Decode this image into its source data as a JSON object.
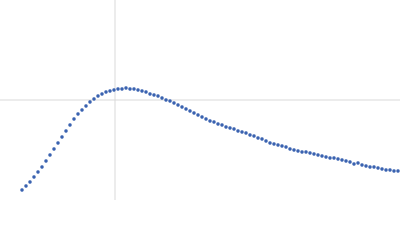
{
  "chart_data": {
    "type": "scatter",
    "color": "#3a62b0",
    "xlim": [
      0,
      400
    ],
    "ylim": [
      0,
      200
    ],
    "xticks": [
      115
    ],
    "yticks": [
      100
    ],
    "grid": true,
    "x": [
      22,
      26,
      30,
      34,
      38,
      42,
      46,
      50,
      54,
      58,
      62,
      66,
      70,
      74,
      78,
      82,
      86,
      90,
      94,
      98,
      102,
      106,
      110,
      114,
      118,
      122,
      126,
      130,
      134,
      138,
      142,
      146,
      150,
      154,
      158,
      162,
      166,
      170,
      174,
      178,
      182,
      186,
      190,
      194,
      198,
      202,
      206,
      210,
      214,
      218,
      222,
      226,
      230,
      234,
      238,
      242,
      246,
      250,
      254,
      258,
      262,
      266,
      270,
      274,
      278,
      282,
      286,
      290,
      294,
      298,
      302,
      306,
      310,
      314,
      318,
      322,
      326,
      330,
      334,
      338,
      342,
      346,
      350,
      354,
      358,
      362,
      366,
      370,
      374,
      378,
      382,
      386,
      390,
      394,
      398
    ],
    "values": [
      10,
      14,
      18,
      23,
      28,
      33,
      39,
      45,
      51,
      57,
      63,
      69,
      75,
      81,
      86,
      90,
      94,
      98,
      101,
      104,
      106,
      108,
      109,
      110,
      111,
      111,
      112,
      111,
      111,
      110,
      109,
      108,
      106,
      105,
      104,
      102,
      100,
      99,
      97,
      95,
      93,
      91,
      89,
      87,
      85,
      83,
      81,
      79,
      78,
      76,
      75,
      73,
      72,
      71,
      69,
      68,
      67,
      65,
      64,
      62,
      61,
      59,
      57,
      56,
      55,
      54,
      53,
      51,
      50,
      49,
      48,
      48,
      47,
      46,
      45,
      44,
      43,
      42,
      42,
      41,
      40,
      39,
      38,
      36,
      37,
      35,
      34,
      33,
      33,
      32,
      31,
      30,
      30,
      29,
      29
    ]
  }
}
